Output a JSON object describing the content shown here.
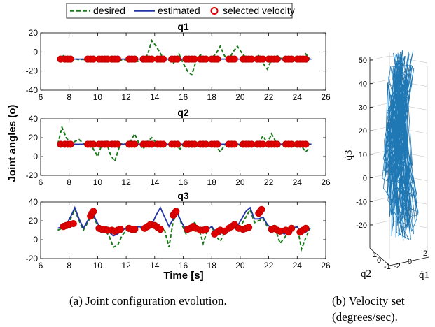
{
  "legend": {
    "items": [
      {
        "label": "desired",
        "style": "dashed",
        "color": "#1a7a1a"
      },
      {
        "label": "estimated",
        "style": "solid",
        "color": "#2233aa"
      },
      {
        "label": "selected velocity",
        "style": "circle",
        "color": "#e00000"
      }
    ],
    "placement": "top-center"
  },
  "captions": {
    "a": "(a) Joint configuration evolution.",
    "b_line1": "(b) Velocity set",
    "b_line2": "(degrees/sec)."
  },
  "shared": {
    "ylabel": "Joint angles (o)",
    "xlabel": "Time [s]"
  },
  "chart_data": [
    {
      "type": "line",
      "title": "q1",
      "xlim": [
        6,
        26
      ],
      "ylim": [
        -40,
        20
      ],
      "xticks": [
        6,
        8,
        10,
        12,
        14,
        16,
        18,
        20,
        22,
        24,
        26
      ],
      "yticks": [
        -40,
        -20,
        0,
        20
      ],
      "grid": false,
      "series": [
        {
          "name": "desired",
          "x": [
            7.2,
            7.6,
            7.9,
            8.2,
            8.6,
            9.0,
            9.4,
            9.8,
            10.2,
            10.5,
            10.9,
            11.3,
            11.7,
            12.0,
            12.4,
            12.8,
            13.2,
            13.5,
            13.8,
            14.1,
            14.5,
            14.9,
            15.3,
            15.7,
            16.0,
            16.3,
            16.6,
            16.9,
            17.2,
            17.6,
            18.0,
            18.3,
            18.6,
            18.9,
            19.2,
            19.5,
            19.8,
            20.2,
            20.6,
            21.0,
            21.3,
            21.6,
            21.9,
            22.2,
            22.6,
            23.0,
            23.4,
            23.8,
            24.2,
            24.6,
            24.9
          ],
          "y": [
            -8,
            -4,
            -9,
            -6,
            -8,
            -8,
            -8,
            -7,
            -9,
            -10,
            -8,
            -6,
            -9,
            -8,
            -9,
            -10,
            -8,
            -3,
            12,
            6,
            -4,
            -8,
            -12,
            -2,
            -12,
            -20,
            -24,
            -10,
            -3,
            -8,
            -6,
            -2,
            6,
            -4,
            -8,
            0,
            6,
            -3,
            -8,
            -8,
            -4,
            -12,
            -18,
            -8,
            -4,
            -8,
            -8,
            -6,
            -8,
            -2,
            -8
          ]
        },
        {
          "name": "estimated",
          "x": [
            7.2,
            25
          ],
          "y": [
            -7.5,
            -7.5
          ]
        },
        {
          "name": "selected velocity",
          "style": "marker",
          "x": [
            7.4,
            7.7,
            7.9,
            8.1,
            9.3,
            9.5,
            9.7,
            10.1,
            10.3,
            10.5,
            10.7,
            11.0,
            11.2,
            11.4,
            12.2,
            12.4,
            12.6,
            13.2,
            13.4,
            13.6,
            13.8,
            14.2,
            14.4,
            14.6,
            15.2,
            15.4,
            15.6,
            16.2,
            16.4,
            16.6,
            16.8,
            17.2,
            17.4,
            17.6,
            18.0,
            18.2,
            18.4,
            19.2,
            19.4,
            19.6,
            20.2,
            20.4,
            20.6,
            20.8,
            21.2,
            21.4,
            21.6,
            22.0,
            22.2,
            22.4,
            22.6,
            23.2,
            23.4,
            23.6,
            24.0,
            24.2,
            24.4,
            24.6
          ],
          "y": [
            -7.5,
            -7.5,
            -7.5,
            -7.5,
            -7.5,
            -7.5,
            -7.5,
            -7.5,
            -7.5,
            -7.5,
            -7.5,
            -7.5,
            -7.5,
            -7.5,
            -7.5,
            -7.5,
            -7.5,
            -7.5,
            -7.5,
            -7.5,
            -7.5,
            -7.5,
            -7.5,
            -7.5,
            -7.5,
            -7.5,
            -7.5,
            -7.5,
            -7.5,
            -7.5,
            -7.5,
            -7.5,
            -7.5,
            -7.5,
            -7.5,
            -7.5,
            -7.5,
            -7.5,
            -7.5,
            -7.5,
            -7.5,
            -7.5,
            -7.5,
            -7.5,
            -7.5,
            -7.5,
            -7.5,
            -7.5,
            -7.5,
            -7.5,
            -7.5,
            -7.5,
            -7.5,
            -7.5,
            -7.5,
            -7.5,
            -7.5,
            -7.5
          ]
        }
      ]
    },
    {
      "type": "line",
      "title": "q2",
      "xlim": [
        6,
        26
      ],
      "ylim": [
        -20,
        40
      ],
      "xticks": [
        6,
        8,
        10,
        12,
        14,
        16,
        18,
        20,
        22,
        24,
        26
      ],
      "yticks": [
        -20,
        0,
        20,
        40
      ],
      "grid": false,
      "series": [
        {
          "name": "desired",
          "x": [
            7.2,
            7.5,
            7.8,
            8.1,
            8.4,
            8.7,
            9.0,
            9.4,
            9.7,
            10.0,
            10.3,
            10.6,
            10.9,
            11.2,
            11.6,
            12.0,
            12.3,
            12.6,
            12.9,
            13.2,
            13.5,
            13.8,
            14.2,
            14.6,
            15.0,
            15.4,
            15.8,
            16.2,
            16.6,
            17.0,
            17.4,
            17.8,
            18.2,
            18.6,
            19.0,
            19.4,
            19.8,
            20.2,
            20.6,
            21.0,
            21.3,
            21.6,
            21.9,
            22.2,
            22.6,
            23.0,
            23.4,
            23.8,
            24.2,
            24.6,
            24.9
          ],
          "y": [
            13,
            31,
            20,
            14,
            16,
            18,
            14,
            13,
            8,
            0,
            13,
            16,
            2,
            -5,
            14,
            13,
            16,
            24,
            14,
            8,
            16,
            20,
            13,
            14,
            14,
            12,
            8,
            16,
            10,
            12,
            12,
            16,
            13,
            5,
            14,
            16,
            13,
            10,
            16,
            14,
            14,
            22,
            14,
            24,
            13,
            13,
            13,
            14,
            13,
            5,
            10
          ]
        },
        {
          "name": "estimated",
          "x": [
            7.2,
            25
          ],
          "y": [
            13,
            13
          ]
        },
        {
          "name": "selected velocity",
          "style": "marker",
          "x": [
            7.4,
            7.7,
            7.9,
            8.1,
            9.3,
            9.5,
            9.7,
            10.1,
            10.3,
            10.5,
            10.7,
            11.0,
            11.2,
            11.4,
            12.2,
            12.4,
            12.6,
            13.2,
            13.4,
            13.6,
            13.8,
            14.2,
            14.4,
            14.6,
            15.2,
            15.4,
            15.6,
            16.2,
            16.4,
            16.6,
            16.8,
            17.2,
            17.4,
            17.6,
            18.0,
            18.2,
            18.4,
            19.2,
            19.4,
            19.6,
            20.2,
            20.4,
            20.6,
            20.8,
            21.2,
            21.4,
            21.6,
            22.0,
            22.2,
            22.4,
            22.6,
            23.2,
            23.4,
            23.6,
            24.0,
            24.2,
            24.4,
            24.6
          ],
          "y": [
            13,
            13,
            13,
            13,
            13,
            13,
            13,
            13,
            13,
            13,
            13,
            13,
            13,
            13,
            13,
            13,
            13,
            13,
            13,
            13,
            13,
            13,
            13,
            13,
            13,
            13,
            13,
            13,
            13,
            13,
            13,
            13,
            13,
            13,
            13,
            13,
            13,
            13,
            13,
            13,
            13,
            13,
            13,
            13,
            13,
            13,
            13,
            13,
            13,
            13,
            13,
            13,
            13,
            13,
            13,
            13,
            13,
            13
          ]
        }
      ]
    },
    {
      "type": "line",
      "title": "q3",
      "xlim": [
        6,
        26
      ],
      "ylim": [
        -20,
        40
      ],
      "xticks": [
        6,
        8,
        10,
        12,
        14,
        16,
        18,
        20,
        22,
        24,
        26
      ],
      "yticks": [
        -20,
        0,
        20,
        40
      ],
      "grid": false,
      "series": [
        {
          "name": "desired",
          "x": [
            7.2,
            7.5,
            7.8,
            8.1,
            8.4,
            8.7,
            9.0,
            9.3,
            9.6,
            9.9,
            10.2,
            10.5,
            10.8,
            11.1,
            11.4,
            11.7,
            12.0,
            12.3,
            12.6,
            12.9,
            13.2,
            13.5,
            13.8,
            14.1,
            14.4,
            14.7,
            15.0,
            15.3,
            15.6,
            15.9,
            16.2,
            16.5,
            16.8,
            17.1,
            17.4,
            17.7,
            18.0,
            18.3,
            18.6,
            18.9,
            19.2,
            19.5,
            19.8,
            20.1,
            20.4,
            20.7,
            21.0,
            21.3,
            21.6,
            21.9,
            22.2,
            22.5,
            22.8,
            23.1,
            23.4,
            23.7,
            24.0,
            24.3,
            24.6,
            24.9
          ],
          "y": [
            10,
            12,
            14,
            22,
            32,
            20,
            10,
            18,
            28,
            18,
            10,
            10,
            4,
            -8,
            -6,
            4,
            10,
            8,
            12,
            14,
            10,
            13,
            14,
            12,
            8,
            10,
            -8,
            20,
            28,
            16,
            6,
            14,
            18,
            12,
            -4,
            10,
            14,
            4,
            -2,
            8,
            12,
            18,
            10,
            16,
            24,
            32,
            18,
            20,
            22,
            14,
            10,
            10,
            -4,
            2,
            8,
            12,
            14,
            -10,
            2,
            12
          ]
        },
        {
          "name": "estimated",
          "x": [
            7.2,
            7.5,
            7.8,
            8.1,
            8.4,
            8.7,
            9.0,
            9.3,
            9.6,
            9.9,
            10.2,
            10.5,
            10.8,
            11.1,
            11.4,
            11.7,
            12.0,
            12.3,
            12.6,
            12.9,
            13.2,
            13.5,
            13.8,
            14.1,
            14.4,
            14.7,
            15.0,
            15.3,
            15.6,
            15.9,
            16.2,
            16.5,
            16.8,
            17.1,
            17.4,
            17.7,
            18.0,
            18.3,
            18.6,
            18.9,
            19.2,
            19.5,
            19.8,
            20.1,
            20.4,
            20.7,
            21.0,
            21.3,
            21.6,
            21.9,
            22.2,
            22.5,
            22.8,
            23.1,
            23.4,
            23.7,
            24.0,
            24.3,
            24.6,
            24.9
          ],
          "y": [
            12,
            14,
            16,
            24,
            34,
            22,
            12,
            20,
            30,
            20,
            12,
            12,
            8,
            4,
            6,
            10,
            12,
            10,
            12,
            14,
            12,
            14,
            16,
            26,
            34,
            24,
            14,
            22,
            28,
            18,
            10,
            14,
            16,
            12,
            8,
            10,
            14,
            8,
            6,
            10,
            12,
            18,
            14,
            22,
            30,
            34,
            22,
            22,
            24,
            16,
            12,
            12,
            8,
            6,
            8,
            12,
            14,
            6,
            8,
            12
          ]
        },
        {
          "name": "selected velocity",
          "style": "marker",
          "x": [
            7.6,
            7.8,
            8.0,
            8.3,
            9.5,
            9.6,
            9.7,
            10.1,
            10.3,
            10.5,
            10.7,
            11.0,
            11.2,
            11.4,
            11.6,
            12.2,
            12.4,
            12.6,
            13.3,
            13.5,
            13.7,
            14.0,
            14.2,
            14.4,
            15.3,
            15.4,
            15.5,
            16.3,
            16.5,
            16.7,
            16.9,
            17.2,
            17.4,
            17.6,
            18.2,
            18.4,
            18.6,
            18.9,
            19.2,
            19.4,
            19.6,
            19.9,
            20.2,
            20.4,
            20.6,
            21.3,
            21.4,
            21.5,
            22.2,
            22.4,
            22.6,
            22.8,
            23.2,
            23.4,
            23.6,
            24.2,
            24.4,
            24.6
          ],
          "y": [
            14,
            15,
            16,
            17,
            25,
            28,
            30,
            12,
            11,
            11,
            10,
            10,
            9,
            10,
            11,
            12,
            11,
            11,
            12,
            14,
            16,
            15,
            13,
            11,
            26,
            28,
            30,
            11,
            12,
            14,
            12,
            10,
            10,
            11,
            6,
            8,
            10,
            9,
            12,
            14,
            16,
            12,
            11,
            12,
            13,
            28,
            30,
            32,
            11,
            12,
            10,
            9,
            10,
            8,
            12,
            8,
            10,
            12
          ]
        }
      ]
    },
    {
      "type": "line",
      "title": "",
      "xlabel": "q̇1",
      "ylabel": "q̇3",
      "zlabel": "q̇2",
      "zticks": [
        -20,
        -10,
        0,
        10,
        20,
        30,
        40,
        50
      ],
      "x_ticks": [
        -2,
        0,
        2
      ],
      "y_ticks": [
        -1,
        0,
        1
      ],
      "note": "3D velocity set trajectory",
      "series": [
        {
          "name": "velocity set",
          "color": "#1f77b4"
        }
      ]
    }
  ]
}
